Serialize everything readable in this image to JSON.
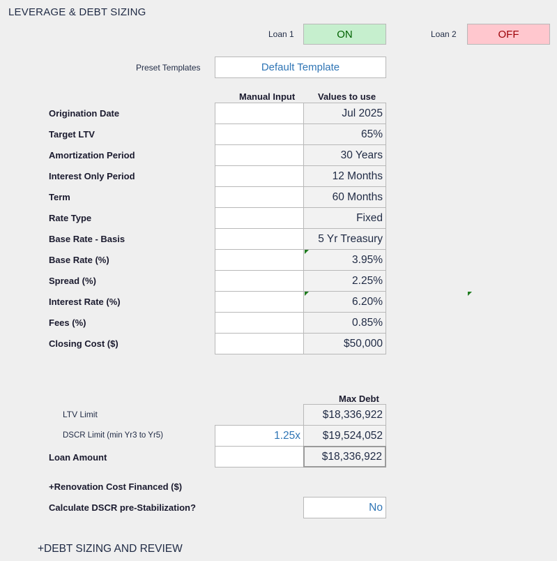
{
  "title": "LEVERAGE & DEBT SIZING",
  "loan1": {
    "label": "Loan 1",
    "status": "ON"
  },
  "loan2": {
    "label": "Loan 2",
    "status": "OFF"
  },
  "preset": {
    "label": "Preset Templates",
    "value": "Default Template"
  },
  "headers": {
    "manual": "Manual Input",
    "values": "Values to use",
    "max_debt": "Max Debt"
  },
  "rows": [
    {
      "label": "Origination Date",
      "manual": "",
      "value": "Jul 2025"
    },
    {
      "label": "Target LTV",
      "manual": "",
      "value": "65%"
    },
    {
      "label": "Amortization Period",
      "manual": "",
      "value": "30 Years"
    },
    {
      "label": "Interest Only Period",
      "manual": "",
      "value": "12 Months"
    },
    {
      "label": "Term",
      "manual": "",
      "value": "60 Months"
    },
    {
      "label": "Rate Type",
      "manual": "",
      "value": "Fixed"
    },
    {
      "label": "Base Rate - Basis",
      "manual": "",
      "value": "5 Yr Treasury"
    },
    {
      "label": "Base Rate (%)",
      "manual": "",
      "value": "3.95%"
    },
    {
      "label": "Spread (%)",
      "manual": "",
      "value": "2.25%"
    },
    {
      "label": "Interest Rate (%)",
      "manual": "",
      "value": "6.20%"
    },
    {
      "label": "Fees (%)",
      "manual": "",
      "value": "0.85%"
    },
    {
      "label": "Closing Cost ($)",
      "manual": "",
      "value": "$50,000"
    }
  ],
  "sizing": {
    "ltv_limit": {
      "label": "LTV Limit",
      "value": "$18,336,922"
    },
    "dscr_limit": {
      "label": "DSCR Limit (min Yr3 to Yr5)",
      "input": "1.25x",
      "value": "$19,524,052"
    },
    "loan_amount": {
      "label": "Loan Amount",
      "input": "",
      "value": "$18,336,922"
    }
  },
  "renovation_label": "+Renovation Cost Financed ($)",
  "dscr_pre_stab": {
    "label": "Calculate DSCR pre-Stabilization?",
    "value": "No"
  },
  "footer_link": "+DEBT SIZING AND REVIEW",
  "colors": {
    "on_bg": "#c6efce",
    "on_text": "#006100",
    "off_bg": "#ffc7ce",
    "off_text": "#9c0006",
    "link_blue": "#2f75b5"
  }
}
